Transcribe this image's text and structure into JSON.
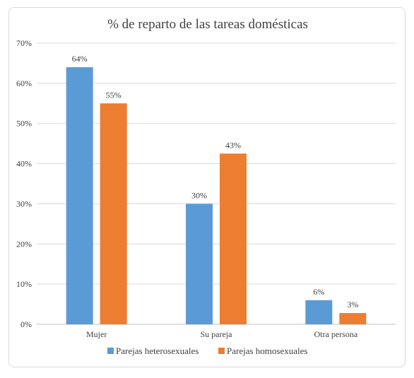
{
  "chart_data": {
    "type": "bar",
    "title": "% de reparto de las tareas domésticas",
    "xlabel": "",
    "ylabel": "",
    "categories": [
      "Mujer",
      "Su pareja",
      "Otra persona"
    ],
    "series": [
      {
        "name": "Parejas heterosexuales",
        "color": "#5b9bd5",
        "values": [
          64,
          30,
          6
        ],
        "labels": [
          "64%",
          "30%",
          "6%"
        ]
      },
      {
        "name": "Parejas homosexuales",
        "color": "#ed7d31",
        "values": [
          55,
          42.5,
          2.8
        ],
        "labels": [
          "55%",
          "43%",
          "3%"
        ]
      }
    ],
    "ylim": [
      0,
      70
    ],
    "yticks": [
      0,
      10,
      20,
      30,
      40,
      50,
      60,
      70
    ],
    "ytick_labels": [
      "0%",
      "10%",
      "20%",
      "30%",
      "40%",
      "50%",
      "60%",
      "70%"
    ],
    "grid": true,
    "legend": "bottom"
  }
}
